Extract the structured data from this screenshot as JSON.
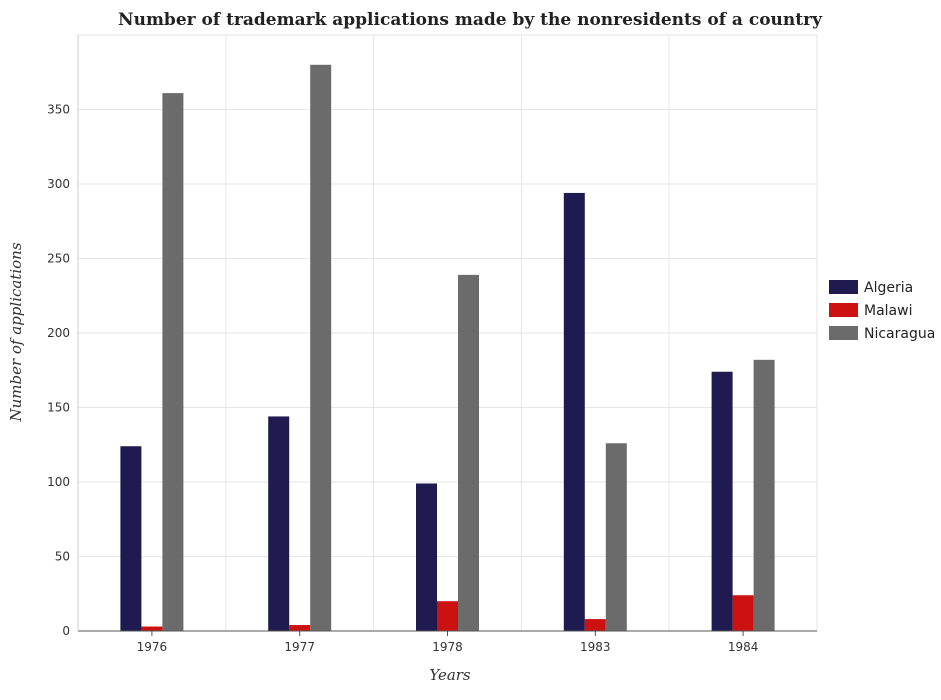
{
  "chart_data": {
    "type": "bar",
    "title": "Number of trademark applications made by the nonresidents of a country",
    "xlabel": "Years",
    "ylabel": "Number of applications",
    "categories": [
      "1976",
      "1977",
      "1978",
      "1983",
      "1984"
    ],
    "ylim": [
      0,
      400
    ],
    "yticks": [
      0,
      50,
      100,
      150,
      200,
      250,
      300,
      350
    ],
    "grid": true,
    "legend_position": "right",
    "series": [
      {
        "name": "Algeria",
        "color": "#1f1a4f",
        "values": [
          124,
          144,
          99,
          294,
          174
        ]
      },
      {
        "name": "Malawi",
        "color": "#cc1111",
        "values": [
          3,
          4,
          20,
          8,
          24
        ]
      },
      {
        "name": "Nicaragua",
        "color": "#6b6b6b",
        "values": [
          361,
          380,
          239,
          126,
          182
        ]
      }
    ]
  }
}
